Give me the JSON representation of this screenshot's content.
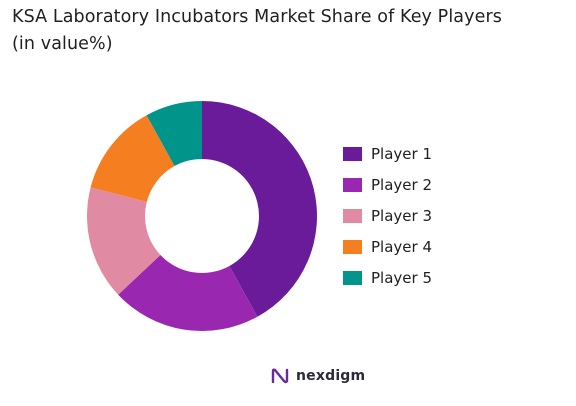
{
  "title_line1": "KSA Laboratory Incubators Market Share of Key Players",
  "title_line2": "(in value%)",
  "brand": {
    "name": "nexdigm",
    "color": "#6a2a9a"
  },
  "chart_data": {
    "type": "pie",
    "style": "donut",
    "title": "KSA Laboratory Incubators Market Share of Key Players (in value%)",
    "legend_position": "right",
    "series": [
      {
        "name": "Player 1",
        "value": 42,
        "color": "#6a1b9a"
      },
      {
        "name": "Player 2",
        "value": 21,
        "color": "#9a27b0"
      },
      {
        "name": "Player 3",
        "value": 16,
        "color": "#e08aa3"
      },
      {
        "name": "Player 4",
        "value": 13,
        "color": "#f57e20"
      },
      {
        "name": "Player 5",
        "value": 8,
        "color": "#00948a"
      }
    ]
  }
}
